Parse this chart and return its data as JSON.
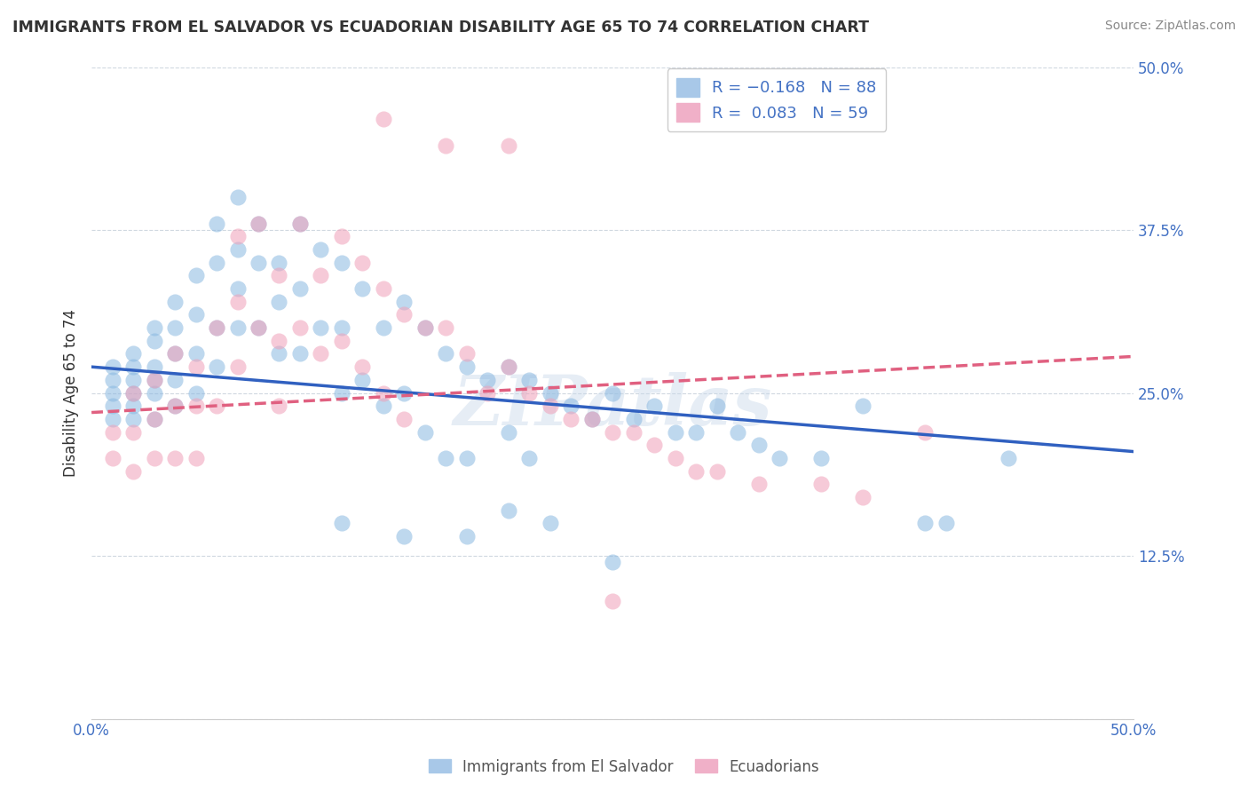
{
  "title": "IMMIGRANTS FROM EL SALVADOR VS ECUADORIAN DISABILITY AGE 65 TO 74 CORRELATION CHART",
  "source": "Source: ZipAtlas.com",
  "ylabel": "Disability Age 65 to 74",
  "xlim": [
    0.0,
    0.5
  ],
  "ylim": [
    0.0,
    0.5
  ],
  "blue_scatter_color": "#89b8e0",
  "pink_scatter_color": "#f0a0b8",
  "blue_line_color": "#3060c0",
  "pink_line_color": "#e06080",
  "watermark": "ZIPatlas",
  "background_color": "#ffffff",
  "grid_color": "#d0d8e0",
  "R_blue": -0.168,
  "N_blue": 88,
  "R_pink": 0.083,
  "N_pink": 59,
  "blue_line_x0": 0.0,
  "blue_line_y0": 0.27,
  "blue_line_x1": 0.5,
  "blue_line_y1": 0.205,
  "pink_line_x0": 0.0,
  "pink_line_y0": 0.235,
  "pink_line_x1": 0.5,
  "pink_line_y1": 0.278,
  "blue_x": [
    0.01,
    0.01,
    0.01,
    0.01,
    0.01,
    0.02,
    0.02,
    0.02,
    0.02,
    0.02,
    0.02,
    0.03,
    0.03,
    0.03,
    0.03,
    0.03,
    0.03,
    0.04,
    0.04,
    0.04,
    0.04,
    0.04,
    0.05,
    0.05,
    0.05,
    0.05,
    0.06,
    0.06,
    0.06,
    0.06,
    0.07,
    0.07,
    0.07,
    0.07,
    0.08,
    0.08,
    0.08,
    0.09,
    0.09,
    0.09,
    0.1,
    0.1,
    0.1,
    0.11,
    0.11,
    0.12,
    0.12,
    0.12,
    0.13,
    0.13,
    0.14,
    0.14,
    0.15,
    0.15,
    0.16,
    0.16,
    0.17,
    0.17,
    0.18,
    0.18,
    0.19,
    0.2,
    0.2,
    0.21,
    0.21,
    0.22,
    0.23,
    0.24,
    0.25,
    0.26,
    0.27,
    0.28,
    0.29,
    0.3,
    0.31,
    0.32,
    0.33,
    0.35,
    0.37,
    0.4,
    0.41,
    0.44,
    0.12,
    0.15,
    0.18,
    0.2,
    0.22,
    0.25
  ],
  "blue_y": [
    0.27,
    0.26,
    0.25,
    0.24,
    0.23,
    0.28,
    0.27,
    0.26,
    0.25,
    0.24,
    0.23,
    0.3,
    0.29,
    0.27,
    0.26,
    0.25,
    0.23,
    0.32,
    0.3,
    0.28,
    0.26,
    0.24,
    0.34,
    0.31,
    0.28,
    0.25,
    0.38,
    0.35,
    0.3,
    0.27,
    0.4,
    0.36,
    0.33,
    0.3,
    0.38,
    0.35,
    0.3,
    0.35,
    0.32,
    0.28,
    0.38,
    0.33,
    0.28,
    0.36,
    0.3,
    0.35,
    0.3,
    0.25,
    0.33,
    0.26,
    0.3,
    0.24,
    0.32,
    0.25,
    0.3,
    0.22,
    0.28,
    0.2,
    0.27,
    0.2,
    0.26,
    0.27,
    0.22,
    0.26,
    0.2,
    0.25,
    0.24,
    0.23,
    0.25,
    0.23,
    0.24,
    0.22,
    0.22,
    0.24,
    0.22,
    0.21,
    0.2,
    0.2,
    0.24,
    0.15,
    0.15,
    0.2,
    0.15,
    0.14,
    0.14,
    0.16,
    0.15,
    0.12
  ],
  "pink_x": [
    0.01,
    0.01,
    0.02,
    0.02,
    0.02,
    0.03,
    0.03,
    0.03,
    0.04,
    0.04,
    0.04,
    0.05,
    0.05,
    0.05,
    0.06,
    0.06,
    0.07,
    0.07,
    0.07,
    0.08,
    0.08,
    0.09,
    0.09,
    0.09,
    0.1,
    0.1,
    0.11,
    0.11,
    0.12,
    0.12,
    0.13,
    0.13,
    0.14,
    0.14,
    0.15,
    0.15,
    0.16,
    0.17,
    0.18,
    0.19,
    0.2,
    0.21,
    0.22,
    0.23,
    0.24,
    0.25,
    0.26,
    0.27,
    0.28,
    0.29,
    0.3,
    0.32,
    0.35,
    0.37,
    0.4,
    0.14,
    0.17,
    0.2,
    0.25
  ],
  "pink_y": [
    0.22,
    0.2,
    0.25,
    0.22,
    0.19,
    0.26,
    0.23,
    0.2,
    0.28,
    0.24,
    0.2,
    0.27,
    0.24,
    0.2,
    0.3,
    0.24,
    0.37,
    0.32,
    0.27,
    0.38,
    0.3,
    0.34,
    0.29,
    0.24,
    0.38,
    0.3,
    0.34,
    0.28,
    0.37,
    0.29,
    0.35,
    0.27,
    0.33,
    0.25,
    0.31,
    0.23,
    0.3,
    0.3,
    0.28,
    0.25,
    0.27,
    0.25,
    0.24,
    0.23,
    0.23,
    0.22,
    0.22,
    0.21,
    0.2,
    0.19,
    0.19,
    0.18,
    0.18,
    0.17,
    0.22,
    0.46,
    0.44,
    0.44,
    0.09
  ]
}
